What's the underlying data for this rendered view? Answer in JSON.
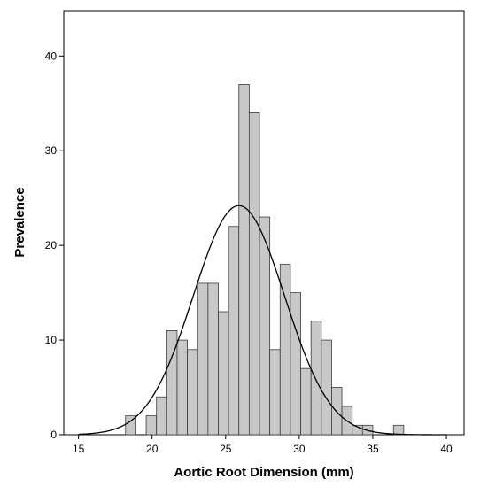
{
  "chart_data": {
    "type": "bar",
    "subtype": "histogram",
    "title": "",
    "xlabel": "Aortic Root Dimension (mm)",
    "ylabel": "Prevalence",
    "xlim": [
      14,
      41.2
    ],
    "ylim": [
      0,
      44.8
    ],
    "xticks": [
      15,
      20,
      25,
      30,
      35,
      40
    ],
    "yticks": [
      0,
      10,
      20,
      30,
      40
    ],
    "bin_width": 0.7,
    "bins": [
      {
        "start": 18.2,
        "count": 2
      },
      {
        "start": 19.6,
        "count": 2
      },
      {
        "start": 20.3,
        "count": 4
      },
      {
        "start": 21.0,
        "count": 11
      },
      {
        "start": 21.7,
        "count": 10
      },
      {
        "start": 22.4,
        "count": 9
      },
      {
        "start": 23.1,
        "count": 16
      },
      {
        "start": 23.8,
        "count": 16
      },
      {
        "start": 24.5,
        "count": 13
      },
      {
        "start": 25.2,
        "count": 22
      },
      {
        "start": 25.9,
        "count": 37
      },
      {
        "start": 26.6,
        "count": 34
      },
      {
        "start": 27.3,
        "count": 23
      },
      {
        "start": 28.0,
        "count": 9
      },
      {
        "start": 28.7,
        "count": 18
      },
      {
        "start": 29.4,
        "count": 15
      },
      {
        "start": 30.1,
        "count": 7
      },
      {
        "start": 30.8,
        "count": 12
      },
      {
        "start": 31.5,
        "count": 10
      },
      {
        "start": 32.2,
        "count": 5
      },
      {
        "start": 32.9,
        "count": 3
      },
      {
        "start": 33.6,
        "count": 1
      },
      {
        "start": 34.3,
        "count": 1
      },
      {
        "start": 36.4,
        "count": 1
      }
    ],
    "normal_curve": {
      "mean": 25.9,
      "peak": 24.2,
      "sd": 3.1
    },
    "grid": false,
    "legend": "none",
    "colors": {
      "bar_fill": "#c8c8c8",
      "bar_stroke": "#3a3a3a",
      "curve": "#000000",
      "axis": "#000000"
    }
  }
}
